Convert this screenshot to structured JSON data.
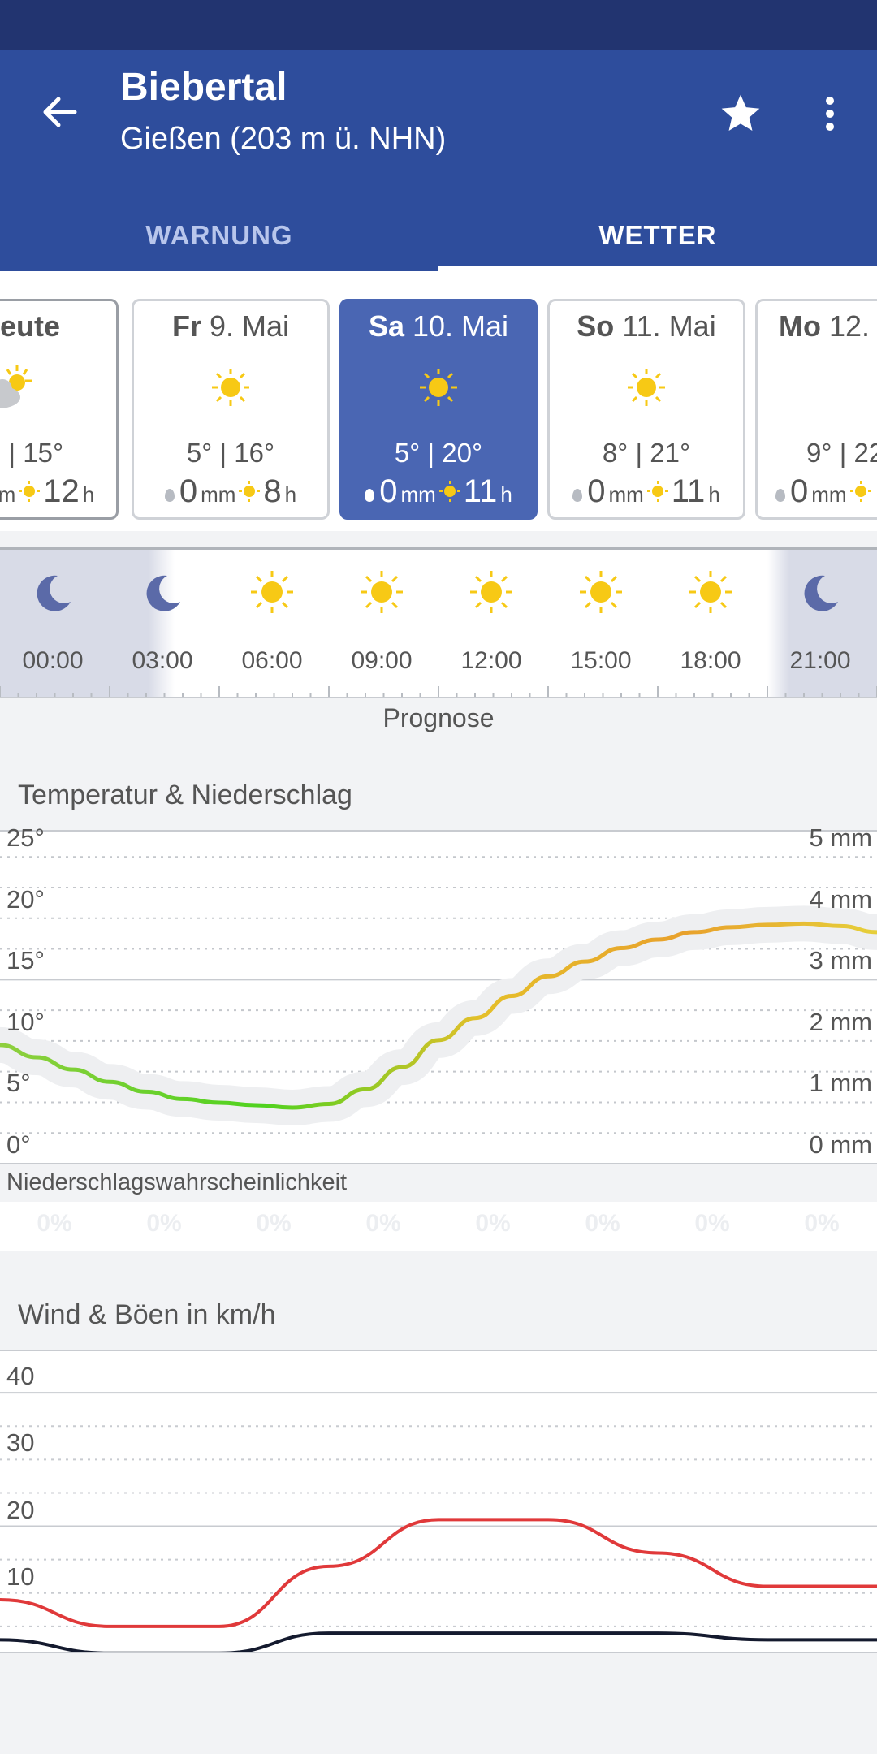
{
  "app_bar": {
    "title": "Biebertal",
    "subtitle": "Gießen (203 m ü. NHN)",
    "tabs": [
      {
        "label": "WARNUNG",
        "selected": false
      },
      {
        "label": "WETTER",
        "selected": true
      }
    ]
  },
  "days": [
    {
      "name": "Heute",
      "date": "",
      "icon": "sun-cloud-icon",
      "temps": "7° | 15°",
      "precip": "0",
      "precip_unit": "mm",
      "sun": "12",
      "sun_unit": "h",
      "selected": false
    },
    {
      "name": "Fr",
      "date": "9. Mai",
      "icon": "sun-icon",
      "temps": "5° | 16°",
      "precip": "0",
      "precip_unit": "mm",
      "sun": "8",
      "sun_unit": "h",
      "selected": false
    },
    {
      "name": "Sa",
      "date": "10. Mai",
      "icon": "sun-icon",
      "temps": "5° | 20°",
      "precip": "0",
      "precip_unit": "mm",
      "sun": "11",
      "sun_unit": "h",
      "selected": true
    },
    {
      "name": "So",
      "date": "11. Mai",
      "icon": "sun-icon",
      "temps": "8° | 21°",
      "precip": "0",
      "precip_unit": "mm",
      "sun": "11",
      "sun_unit": "h",
      "selected": false
    },
    {
      "name": "Mo",
      "date": "12. Mai",
      "icon": "sun-icon",
      "temps": "9° | 22°",
      "precip": "0",
      "precip_unit": "mm",
      "sun": "",
      "sun_unit": "",
      "selected": false
    }
  ],
  "hours": [
    {
      "time": "00:00",
      "icon": "moon-icon"
    },
    {
      "time": "03:00",
      "icon": "moon-icon"
    },
    {
      "time": "06:00",
      "icon": "sun-icon"
    },
    {
      "time": "09:00",
      "icon": "sun-icon"
    },
    {
      "time": "12:00",
      "icon": "sun-icon"
    },
    {
      "time": "15:00",
      "icon": "sun-icon"
    },
    {
      "time": "18:00",
      "icon": "sun-icon"
    },
    {
      "time": "21:00",
      "icon": "moon-icon"
    },
    {
      "time": "00:00",
      "icon": ""
    }
  ],
  "prognose_label": "Prognose",
  "colors": {
    "app_bar": "#2e4d9c",
    "status_bar": "#223470",
    "selected_day": "#4a66b3",
    "sun": "#f7c915",
    "moon": "#5b6aa8",
    "wind": "#141a2e",
    "gusts": "#e0393a"
  },
  "temp_chart": {
    "title": "Temperatur & Niederschlag",
    "y_labels_left": [
      "25°",
      "20°",
      "15°",
      "10°",
      "5°",
      "0°"
    ],
    "y_labels_right": [
      "5 mm",
      "4 mm",
      "3 mm",
      "2 mm",
      "1 mm",
      "0 mm"
    ],
    "probability_title": "Niederschlagswahrscheinlichkeit",
    "probabilities": [
      "0%",
      "0%",
      "0%",
      "0%",
      "0%",
      "0%",
      "0%",
      "0%"
    ]
  },
  "wind_chart": {
    "title": "Wind & Böen in km/h",
    "y_labels": [
      "40",
      "30",
      "20",
      "10"
    ]
  },
  "chart_data": [
    {
      "type": "line",
      "title": "Temperatur & Niederschlag",
      "x": [
        "00:00",
        "01:00",
        "02:00",
        "03:00",
        "04:00",
        "05:00",
        "06:00",
        "07:00",
        "08:00",
        "09:00",
        "10:00",
        "11:00",
        "12:00",
        "13:00",
        "14:00",
        "15:00",
        "16:00",
        "17:00",
        "18:00",
        "19:00",
        "20:00",
        "21:00",
        "22:00",
        "23:00",
        "24:00"
      ],
      "series": [
        {
          "values": [
            9.6,
            8.6,
            7.6,
            6.6,
            5.8,
            5.2,
            4.9,
            4.7,
            4.5,
            4.8,
            6.0,
            7.8,
            10.0,
            11.8,
            13.6,
            15.2,
            16.4,
            17.5,
            18.2,
            18.8,
            19.2,
            19.4,
            19.5,
            19.3,
            18.8
          ]
        }
      ],
      "ylim": [
        0,
        27
      ],
      "precip_mm": [
        0,
        0,
        0,
        0,
        0,
        0,
        0,
        0
      ],
      "y2lim": [
        0,
        5
      ]
    },
    {
      "type": "line",
      "title": "Wind & Böen in km/h",
      "x": [
        "00:00",
        "03:00",
        "06:00",
        "09:00",
        "12:00",
        "15:00",
        "18:00",
        "21:00",
        "24:00"
      ],
      "series": [
        {
          "values": [
            9,
            5,
            5,
            14,
            21,
            21,
            16,
            11,
            11
          ]
        },
        {
          "values": [
            3,
            1,
            1,
            4,
            4,
            4,
            4,
            3,
            3
          ]
        }
      ],
      "ylim": [
        0,
        45
      ]
    }
  ]
}
